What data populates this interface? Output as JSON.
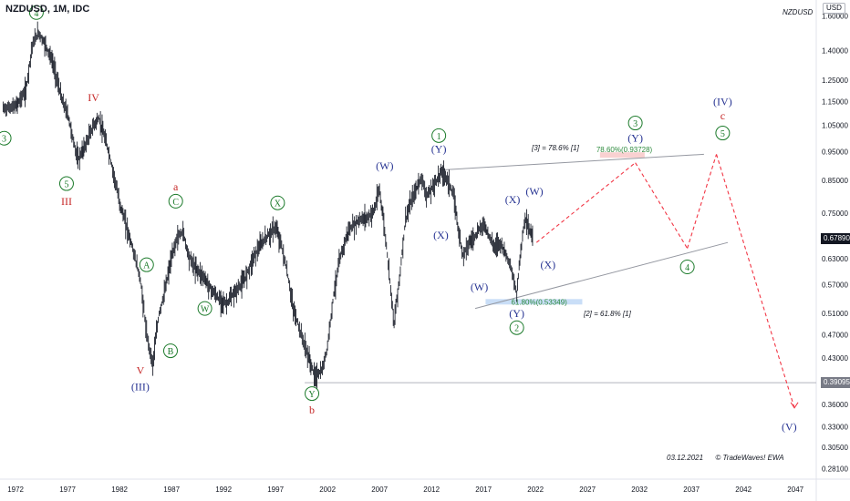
{
  "header": {
    "title": "NZDUSD, 1M, IDC",
    "symbol": "NZDUSD",
    "currency": "USD"
  },
  "chart_data": {
    "type": "line",
    "scale": "log",
    "ylim": [
      0.27,
      1.7
    ],
    "xlim": [
      1970.5,
      2049
    ],
    "y_ticks": [
      "1.60000",
      "1.40000",
      "1.25000",
      "1.15000",
      "1.05000",
      "0.95000",
      "0.85000",
      "0.75000",
      "0.63000",
      "0.57000",
      "0.51000",
      "0.47000",
      "0.43000",
      "0.36000",
      "0.33000",
      "0.30500",
      "0.28100"
    ],
    "y_tick_values": [
      1.6,
      1.4,
      1.25,
      1.15,
      1.05,
      0.95,
      0.85,
      0.75,
      0.63,
      0.57,
      0.51,
      0.47,
      0.43,
      0.36,
      0.33,
      0.305,
      0.281
    ],
    "x_ticks": [
      "1972",
      "1977",
      "1982",
      "1987",
      "1992",
      "1997",
      "2002",
      "2007",
      "2012",
      "2017",
      "2022",
      "2027",
      "2032",
      "2037",
      "2042",
      "2047"
    ],
    "x_tick_values": [
      1972,
      1977,
      1982,
      1987,
      1992,
      1997,
      2002,
      2007,
      2012,
      2017,
      2022,
      2027,
      2032,
      2037,
      2042,
      2047
    ],
    "series": [
      {
        "x": [
          1970.8,
          1972,
          1973,
          1973.6,
          1974.2,
          1974.8,
          1975.5,
          1976.5,
          1977,
          1977.5,
          1978,
          1978.8,
          1979.5,
          1980,
          1980.8,
          1981.5,
          1982,
          1983,
          1984,
          1984.6,
          1985.2,
          1985.8,
          1986.3,
          1986.9,
          1987.5,
          1988.1,
          1988.6,
          1989.2,
          1990,
          1990.8,
          1991.5,
          1992.3,
          1993,
          1994,
          1995,
          1996,
          1997,
          1997.5,
          1998.1,
          1998.7,
          1999.3,
          2000,
          2000.8,
          2001.5,
          2002,
          2002.6,
          2003.2,
          2004,
          2005,
          2006,
          2006.5,
          2007,
          2007.5,
          2008,
          2008.4,
          2009,
          2009.5,
          2010,
          2011,
          2011.6,
          2012.3,
          2013,
          2013.6,
          2014.2,
          2014.6,
          2015,
          2015.6,
          2016,
          2017,
          2017.5,
          2018,
          2018.6,
          2019,
          2019.5,
          2020.2,
          2020.5,
          2021,
          2021.3,
          2021.8
        ],
        "values": [
          1.12,
          1.13,
          1.2,
          1.43,
          1.5,
          1.44,
          1.35,
          1.15,
          1.1,
          1.0,
          0.92,
          0.98,
          1.05,
          1.08,
          0.97,
          0.86,
          0.78,
          0.68,
          0.58,
          0.47,
          0.42,
          0.51,
          0.55,
          0.62,
          0.68,
          0.7,
          0.64,
          0.61,
          0.59,
          0.56,
          0.54,
          0.53,
          0.55,
          0.58,
          0.64,
          0.68,
          0.71,
          0.67,
          0.6,
          0.52,
          0.48,
          0.44,
          0.4,
          0.41,
          0.45,
          0.55,
          0.63,
          0.7,
          0.73,
          0.74,
          0.76,
          0.82,
          0.7,
          0.58,
          0.49,
          0.6,
          0.73,
          0.78,
          0.86,
          0.8,
          0.84,
          0.88,
          0.85,
          0.79,
          0.7,
          0.64,
          0.67,
          0.68,
          0.72,
          0.69,
          0.66,
          0.67,
          0.65,
          0.62,
          0.55,
          0.63,
          0.74,
          0.71,
          0.68
        ]
      }
    ],
    "last_price": "0.67890",
    "hline_price": "0.39095",
    "hline_value": 0.39095,
    "last_value": 0.6789,
    "retracement_high": {
      "text": "78.60%(0.93728)",
      "value": 0.93728,
      "x": [
        2028.2,
        2032.5
      ]
    },
    "retracement_low": {
      "text": "61.80%(0.53349)",
      "value": 0.53349,
      "x": [
        2017.2,
        2026.5
      ]
    },
    "note_high": "[3] = 78.6% [1]",
    "note_low": "[2] = 61.8% [1]",
    "upper_line": {
      "x": [
        2012.9,
        2038.2
      ],
      "values": [
        0.885,
        0.94
      ]
    },
    "lower_line": {
      "x": [
        2016.2,
        2040.5
      ],
      "values": [
        0.52,
        0.67
      ]
    },
    "projection": {
      "x": [
        2022.1,
        2031.6,
        2036.6,
        2039.4,
        2046.9
      ],
      "values": [
        0.67,
        0.91,
        0.655,
        0.94,
        0.355
      ]
    },
    "wave_labels": [
      {
        "text": "4",
        "x": 1974.0,
        "y": 1.62,
        "circle": true,
        "color": "#1b7a2a"
      },
      {
        "text": "3",
        "x": 1970.9,
        "y": 1.0,
        "circle": true,
        "color": "#1b7a2a"
      },
      {
        "text": "IV",
        "x": 1979.5,
        "y": 1.17,
        "circle": false,
        "color": "#c62828"
      },
      {
        "text": "5",
        "x": 1976.9,
        "y": 0.84,
        "circle": true,
        "color": "#1b7a2a"
      },
      {
        "text": "III",
        "x": 1976.9,
        "y": 0.785,
        "circle": false,
        "color": "#c62828"
      },
      {
        "text": "a",
        "x": 1987.4,
        "y": 0.83,
        "circle": false,
        "color": "#c62828"
      },
      {
        "text": "C",
        "x": 1987.4,
        "y": 0.785,
        "circle": true,
        "color": "#1b7a2a"
      },
      {
        "text": "A",
        "x": 1984.6,
        "y": 0.615,
        "circle": true,
        "color": "#1b7a2a"
      },
      {
        "text": "W",
        "x": 1990.2,
        "y": 0.52,
        "circle": true,
        "color": "#1b7a2a"
      },
      {
        "text": "B",
        "x": 1986.9,
        "y": 0.442,
        "circle": true,
        "color": "#1b7a2a"
      },
      {
        "text": "V",
        "x": 1984.0,
        "y": 0.41,
        "circle": false,
        "color": "#c62828"
      },
      {
        "text": "(III)",
        "x": 1984.0,
        "y": 0.385,
        "circle": false,
        "color": "#283593"
      },
      {
        "text": "X",
        "x": 1997.2,
        "y": 0.78,
        "circle": true,
        "color": "#1b7a2a"
      },
      {
        "text": "Y",
        "x": 2000.5,
        "y": 0.375,
        "circle": true,
        "color": "#1b7a2a"
      },
      {
        "text": "b",
        "x": 2000.5,
        "y": 0.352,
        "circle": false,
        "color": "#c62828"
      },
      {
        "text": "(W)",
        "x": 2007.5,
        "y": 0.9,
        "circle": false,
        "color": "#283593"
      },
      {
        "text": "1",
        "x": 2012.7,
        "y": 1.01,
        "circle": true,
        "color": "#1b7a2a"
      },
      {
        "text": "(Y)",
        "x": 2012.7,
        "y": 0.96,
        "circle": false,
        "color": "#283593"
      },
      {
        "text": "(X)",
        "x": 2012.9,
        "y": 0.69,
        "circle": false,
        "color": "#283593"
      },
      {
        "text": "(W)",
        "x": 2016.6,
        "y": 0.565,
        "circle": false,
        "color": "#283593"
      },
      {
        "text": "(X)",
        "x": 2019.8,
        "y": 0.79,
        "circle": false,
        "color": "#283593"
      },
      {
        "text": "(W)",
        "x": 2021.9,
        "y": 0.815,
        "circle": false,
        "color": "#283593"
      },
      {
        "text": "(X)",
        "x": 2023.2,
        "y": 0.615,
        "circle": false,
        "color": "#283593"
      },
      {
        "text": "(Y)",
        "x": 2020.2,
        "y": 0.51,
        "circle": false,
        "color": "#283593"
      },
      {
        "text": "2",
        "x": 2020.2,
        "y": 0.483,
        "circle": true,
        "color": "#1b7a2a"
      },
      {
        "text": "3",
        "x": 2031.6,
        "y": 1.06,
        "circle": true,
        "color": "#1b7a2a"
      },
      {
        "text": "(Y)",
        "x": 2031.6,
        "y": 1.0,
        "circle": false,
        "color": "#283593"
      },
      {
        "text": "(IV)",
        "x": 2040.0,
        "y": 1.15,
        "circle": false,
        "color": "#283593"
      },
      {
        "text": "c",
        "x": 2040.0,
        "y": 1.09,
        "circle": false,
        "color": "#c62828"
      },
      {
        "text": "5",
        "x": 2040.0,
        "y": 1.02,
        "circle": true,
        "color": "#1b7a2a"
      },
      {
        "text": "4",
        "x": 2036.6,
        "y": 0.61,
        "circle": true,
        "color": "#1b7a2a"
      },
      {
        "text": "(V)",
        "x": 2046.4,
        "y": 0.33,
        "circle": false,
        "color": "#283593"
      }
    ]
  },
  "footer": {
    "date": "03.12.2021",
    "credit": "© TradeWaves! EWA"
  },
  "colors": {
    "candles": "#1e222d",
    "last_price_bg": "#131722",
    "hline_bg": "#787b86",
    "projection": "#f23645",
    "channel": "#9598a1",
    "retrace_high_fill": "#f8c6c6",
    "retrace_low_fill": "#bcd6f5",
    "retrace_text": "#2e8b3e"
  }
}
